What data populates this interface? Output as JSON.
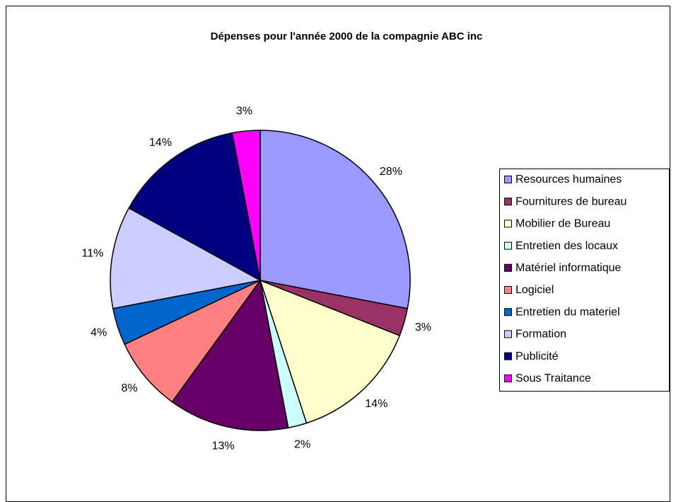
{
  "chart_data": {
    "type": "pie",
    "title": "Dépenses pour l'année 2000 de la compagnie ABC inc",
    "categories": [
      "Resources humaines",
      "Fournitures de bureau",
      "Mobilier de Bureau",
      "Entretien des locaux",
      "Matériel informatique",
      "Logiciel",
      "Entretien du materiel",
      "Formation",
      "Publicité",
      "Sous Traitance"
    ],
    "values": [
      28,
      3,
      14,
      2,
      13,
      8,
      4,
      11,
      14,
      3
    ],
    "value_labels": [
      "28%",
      "3%",
      "14%",
      "2%",
      "13%",
      "8%",
      "4%",
      "11%",
      "14%",
      "3%"
    ],
    "colors": [
      "#9999ff",
      "#993366",
      "#ffffcc",
      "#ccffff",
      "#660066",
      "#ff8080",
      "#0066cc",
      "#ccccff",
      "#000080",
      "#ff00ff"
    ],
    "legend": "right"
  }
}
